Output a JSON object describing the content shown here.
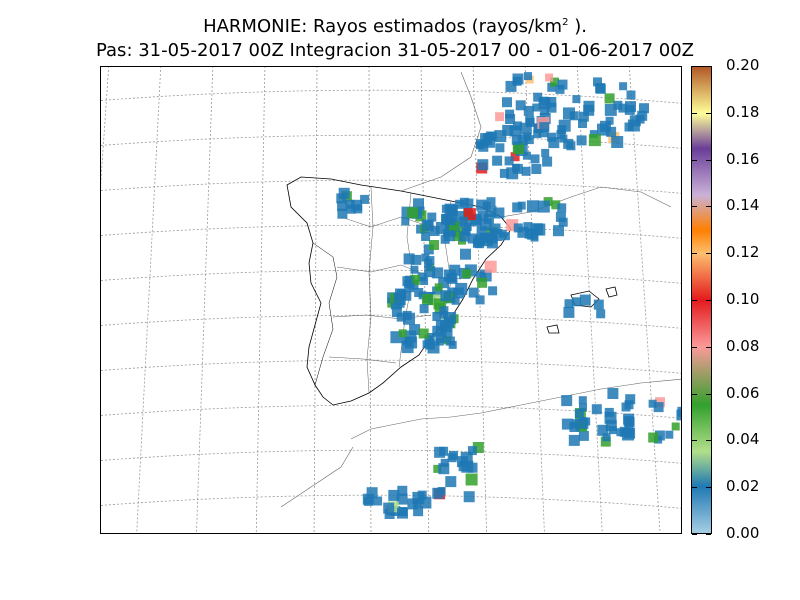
{
  "title": {
    "line1_prefix": "HARMONIE: Rayos estimados  (rayos/km",
    "line1_sup": "2",
    "line1_suffix": " ).",
    "line2": "Pas: 31-05-2017 00Z Integracion 31-05-2017 00 - 01-06-2017 00Z"
  },
  "colorbar": {
    "unit": "rayos/km2",
    "min": 0.0,
    "max": 0.2,
    "tick_labels": [
      "0.00",
      "0.02",
      "0.04",
      "0.06",
      "0.08",
      "0.10",
      "0.12",
      "0.14",
      "0.16",
      "0.18",
      "0.20"
    ],
    "stops": [
      {
        "value": 0.0,
        "color": "#a6cee3"
      },
      {
        "value": 0.02,
        "color": "#1f78b4"
      },
      {
        "value": 0.035,
        "color": "#b2df8a"
      },
      {
        "value": 0.055,
        "color": "#33a02c"
      },
      {
        "value": 0.08,
        "color": "#fb9a99"
      },
      {
        "value": 0.1,
        "color": "#e31a1c"
      },
      {
        "value": 0.12,
        "color": "#fdbf6f"
      },
      {
        "value": 0.13,
        "color": "#ff7f00"
      },
      {
        "value": 0.145,
        "color": "#cab2d6"
      },
      {
        "value": 0.165,
        "color": "#6a3d9a"
      },
      {
        "value": 0.18,
        "color": "#ffff99"
      },
      {
        "value": 0.2,
        "color": "#b15928"
      }
    ]
  },
  "map": {
    "region": "Iberian Peninsula, Balearic Islands, northern Morocco/Algeria",
    "graticule": true,
    "lightning_cells": "scattered convective cells over central Spain, northeast Spain, southern France, Morocco and Algeria coasts"
  }
}
